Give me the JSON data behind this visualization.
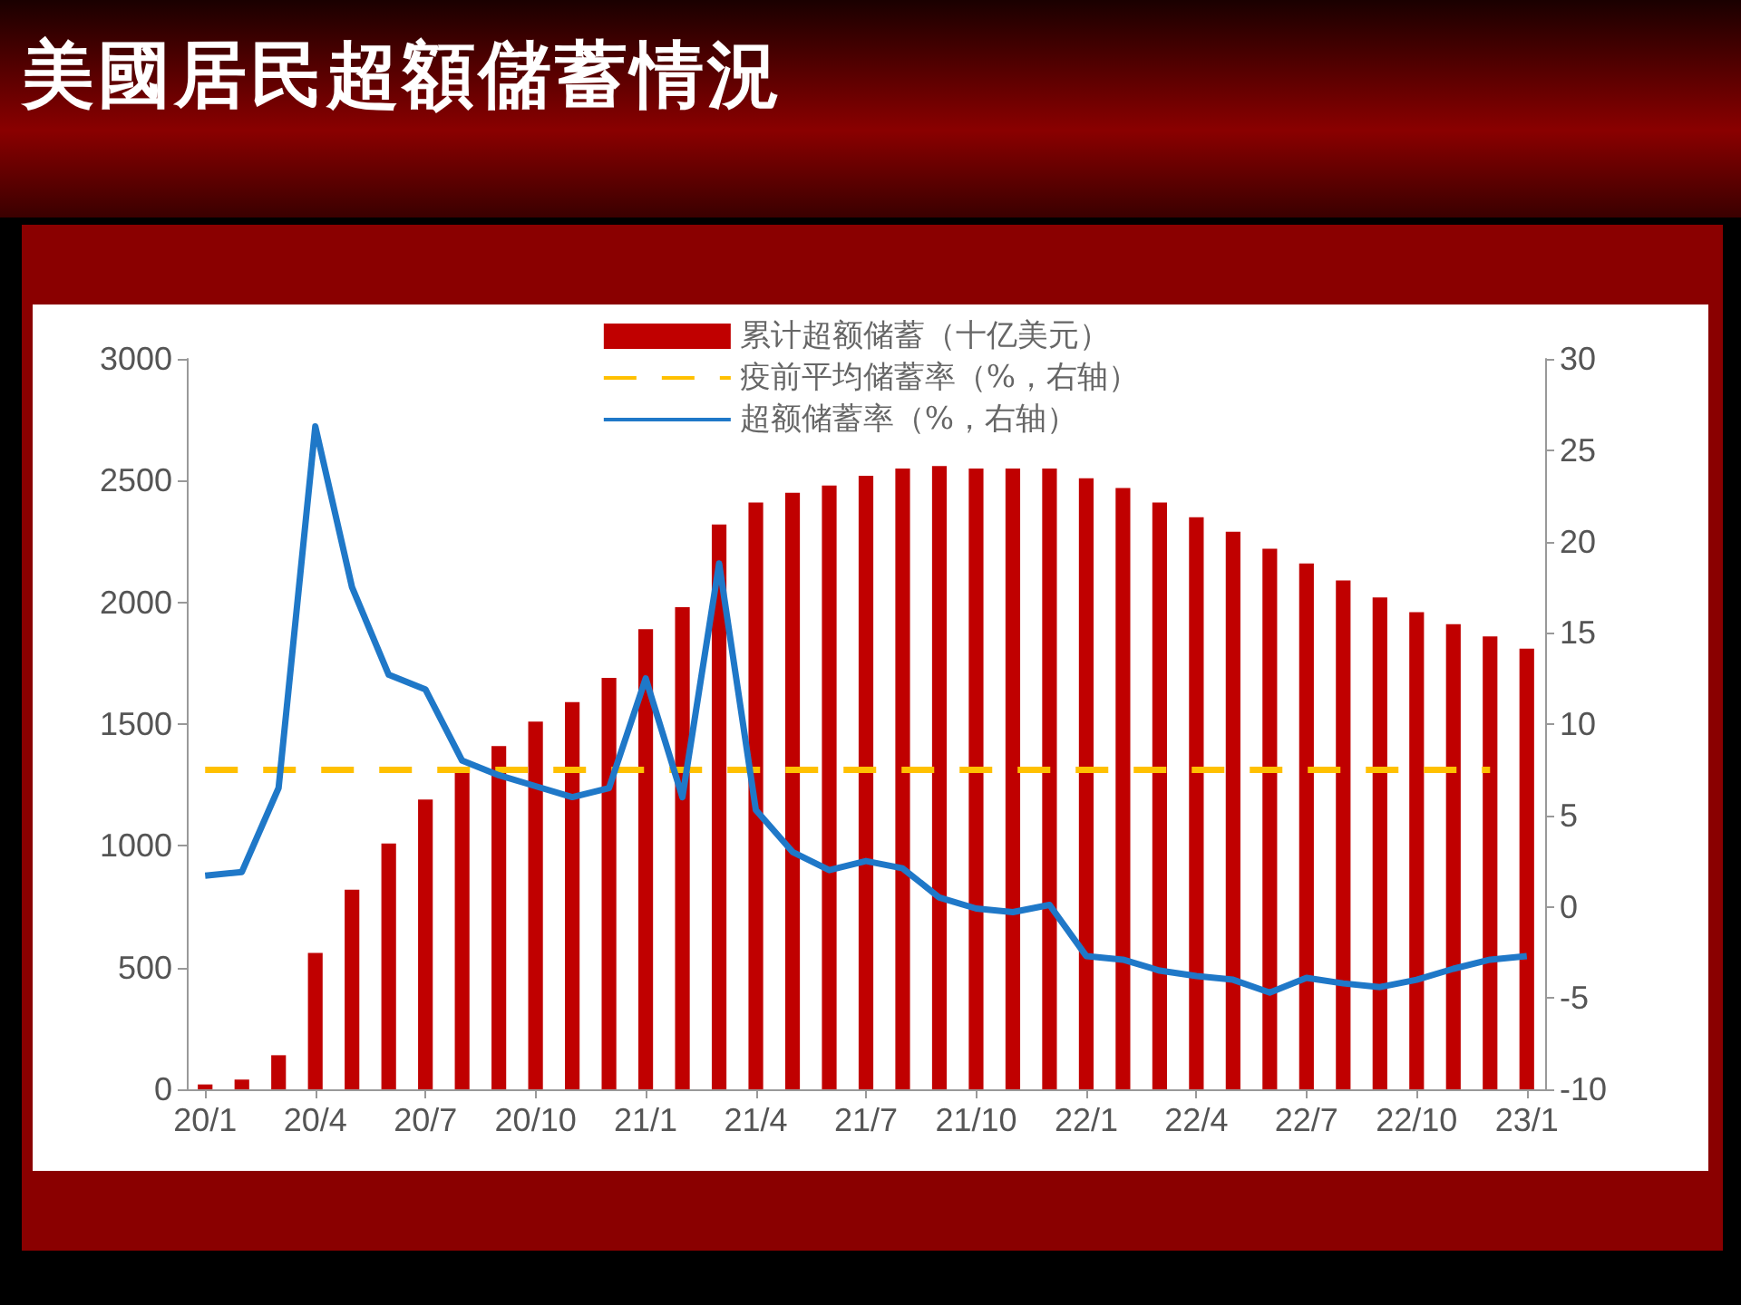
{
  "chart_data": {
    "type": "bar",
    "title": "美國居民超額儲蓄情況",
    "categories": [
      "20/1",
      null,
      null,
      "20/4",
      null,
      null,
      "20/7",
      null,
      null,
      "20/10",
      null,
      null,
      "21/1",
      null,
      null,
      "21/4",
      null,
      null,
      "21/7",
      null,
      null,
      "21/10",
      null,
      null,
      "22/1",
      null,
      null,
      "22/4",
      null,
      null,
      "22/7",
      null,
      null,
      "22/10",
      null,
      null,
      "23/1"
    ],
    "series": [
      {
        "name": "累计超额储蓄（十亿美元）",
        "color": "#c00000",
        "values": [
          20,
          40,
          140,
          560,
          820,
          1010,
          1190,
          1310,
          1410,
          1510,
          1590,
          1690,
          1890,
          1980,
          2320,
          2410,
          2450,
          2480,
          2520,
          2550,
          2560,
          2550,
          2550,
          2550,
          2510,
          2470,
          2410,
          2350,
          2290,
          2220,
          2160,
          2090,
          2020,
          1960,
          1910,
          1860,
          1810
        ]
      },
      {
        "name": "疫前平均储蓄率（%，右轴）",
        "type": "line",
        "axis": "y2",
        "line_style": "dashed",
        "marker": "none",
        "color": "#ffc000",
        "values": [
          7.5,
          7.5,
          7.5,
          7.5,
          7.5,
          7.5,
          7.5,
          7.5,
          7.5,
          7.5,
          7.5,
          7.5,
          7.5,
          7.5,
          7.5,
          7.5,
          7.5,
          7.5,
          7.5,
          7.5,
          7.5,
          7.5,
          7.5,
          7.5,
          7.5,
          7.5,
          7.5,
          7.5,
          7.5,
          7.5,
          7.5,
          7.5,
          7.5,
          7.5,
          7.5,
          7.5,
          null
        ]
      },
      {
        "name": "超额储蓄率（%，右轴）",
        "type": "line",
        "axis": "y2",
        "line_style": "solid",
        "marker": "none",
        "color": "#1f78c8",
        "values": [
          1.7,
          1.9,
          6.5,
          26.3,
          17.5,
          12.7,
          11.9,
          8.0,
          7.2,
          6.6,
          6.0,
          6.5,
          12.5,
          6.0,
          18.8,
          5.3,
          3.0,
          2.0,
          2.5,
          2.1,
          0.5,
          -0.1,
          -0.3,
          0.1,
          -2.7,
          -2.9,
          -3.5,
          -3.8,
          -4.0,
          -4.7,
          -3.9,
          -4.2,
          -4.4,
          -4.0,
          -3.4,
          -2.9,
          -2.7
        ]
      }
    ],
    "ylim": [
      0,
      3000
    ],
    "yticks": [
      0,
      500,
      1000,
      1500,
      2000,
      2500,
      3000
    ],
    "y2lim": [
      -10,
      30
    ],
    "y2ticks": [
      -10,
      -5,
      0,
      5,
      10,
      15,
      20,
      25,
      30
    ],
    "grid": false,
    "legend": "top"
  }
}
